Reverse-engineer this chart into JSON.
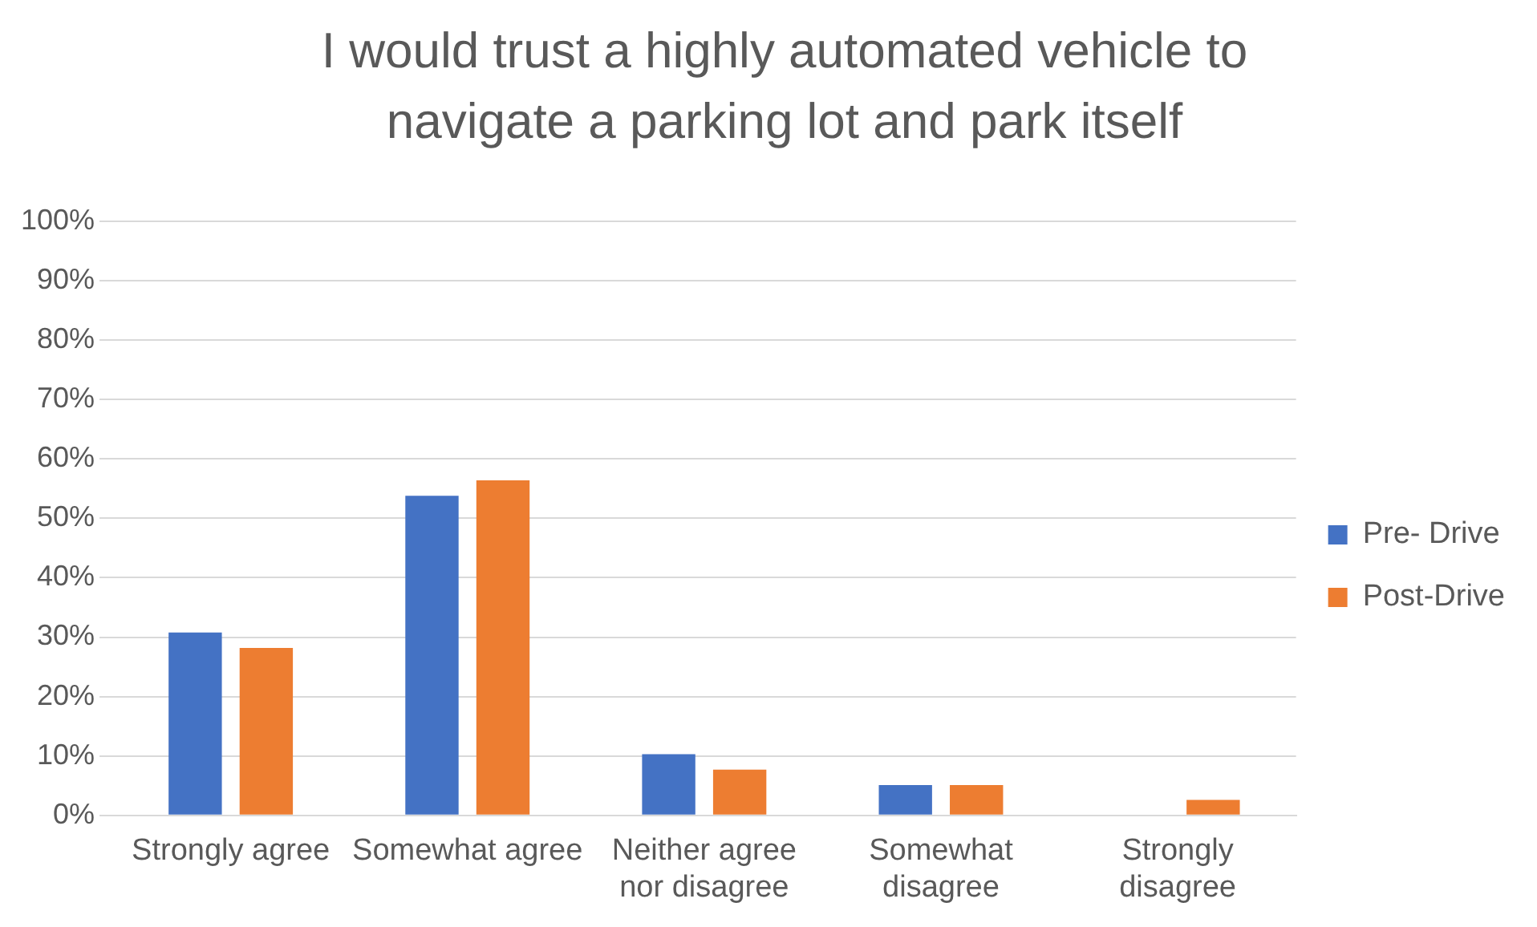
{
  "chart_data": {
    "type": "bar",
    "title": "I would trust a highly automated vehicle to navigate a parking lot and park itself",
    "categories": [
      "Strongly agree",
      "Somewhat agree",
      "Neither agree nor disagree",
      "Somewhat disagree",
      "Strongly disagree"
    ],
    "series": [
      {
        "name": "Pre- Drive",
        "color": "#4472c4",
        "values": [
          30.8,
          53.8,
          10.3,
          5.1,
          0
        ]
      },
      {
        "name": "Post-Drive",
        "color": "#ed7d31",
        "values": [
          28.2,
          56.4,
          7.7,
          5.1,
          2.6
        ]
      }
    ],
    "ylim": [
      0,
      100
    ],
    "yticks": [
      {
        "value": 0,
        "label": "0%"
      },
      {
        "value": 10,
        "label": "10%"
      },
      {
        "value": 20,
        "label": "20%"
      },
      {
        "value": 30,
        "label": "30%"
      },
      {
        "value": 40,
        "label": "40%"
      },
      {
        "value": 50,
        "label": "50%"
      },
      {
        "value": 60,
        "label": "60%"
      },
      {
        "value": 70,
        "label": "70%"
      },
      {
        "value": 80,
        "label": "80%"
      },
      {
        "value": 90,
        "label": "90%"
      },
      {
        "value": 100,
        "label": "100%"
      }
    ],
    "grid": "y",
    "legend": "right"
  }
}
